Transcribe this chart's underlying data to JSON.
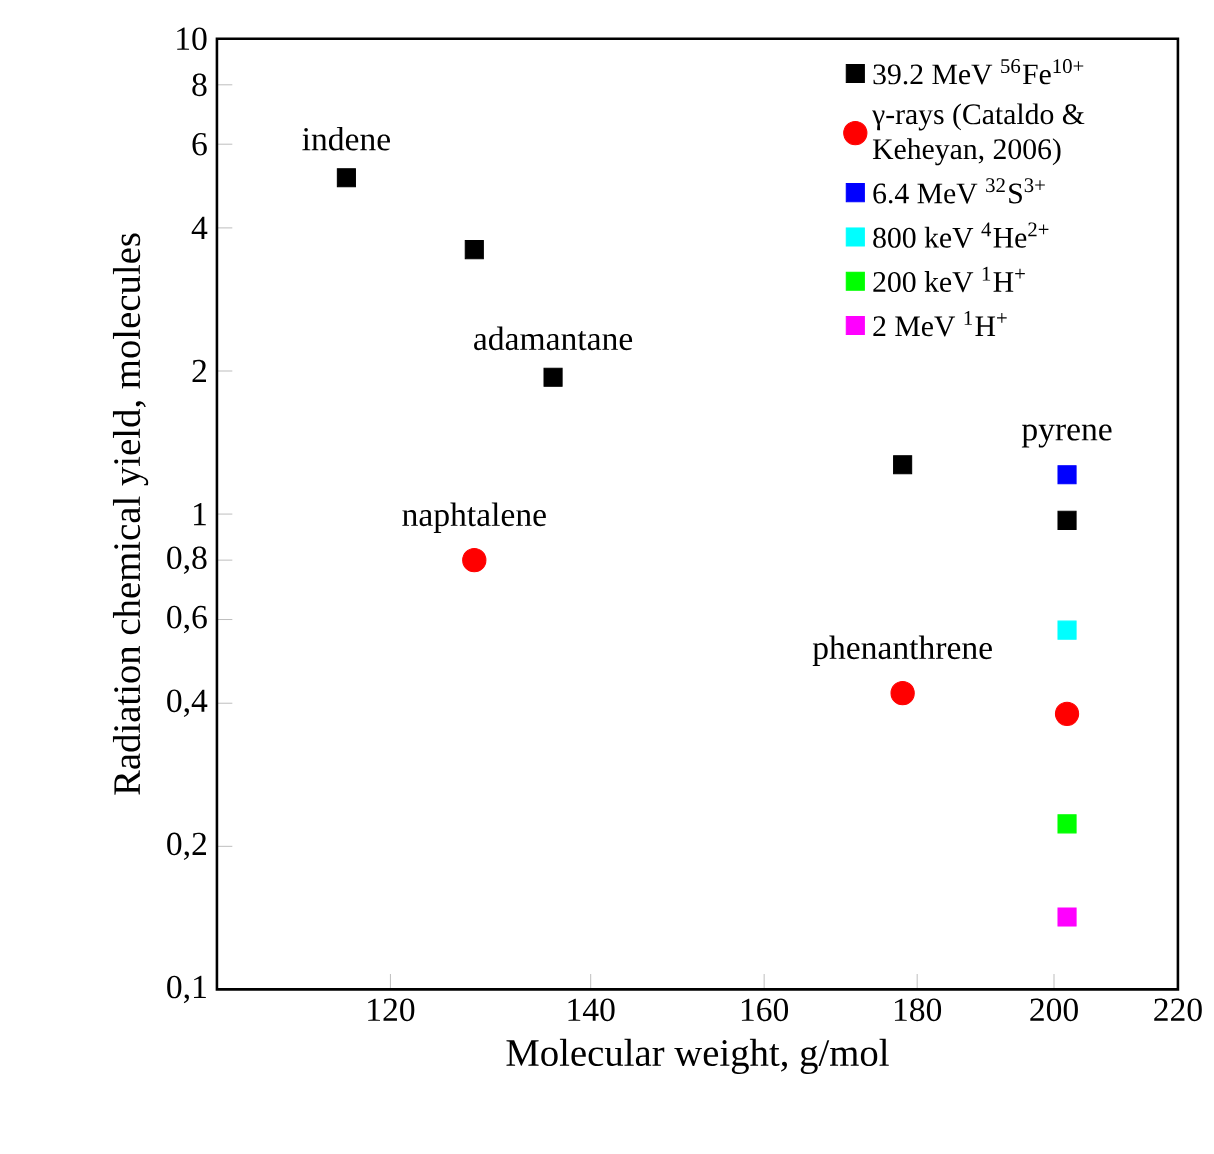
{
  "chart_data": {
    "type": "scatter",
    "xlabel": "Molecular weight, g/mol",
    "ylabel": "Radiation chemical yield, molecules",
    "log": "xy",
    "xlim": [
      105,
      220
    ],
    "ylim": [
      0.1,
      10
    ],
    "xticks": [
      120,
      140,
      160,
      180,
      200,
      220
    ],
    "yticks": [
      {
        "value": 0.1,
        "label": "0,1"
      },
      {
        "value": 0.2,
        "label": "0,2"
      },
      {
        "value": 0.4,
        "label": "0,4"
      },
      {
        "value": 0.6,
        "label": "0,6"
      },
      {
        "value": 0.8,
        "label": "0,8"
      },
      {
        "value": 1,
        "label": "1"
      },
      {
        "value": 2,
        "label": "2"
      },
      {
        "value": 4,
        "label": "4"
      },
      {
        "value": 6,
        "label": "6"
      },
      {
        "value": 8,
        "label": "8"
      },
      {
        "value": 10,
        "label": "10"
      }
    ],
    "legend": "top right",
    "grid": false,
    "series": [
      {
        "name": "39.2 MeV $^{56}$Fe$^{10+}$",
        "color": "#000000",
        "marker": "square",
        "x": [
          116,
          128,
          136,
          178,
          202
        ],
        "values": [
          5.1,
          3.6,
          1.94,
          1.27,
          0.97
        ]
      },
      {
        "name": "γ-rays (Cataldo & Keheyan, 2006)",
        "color": "#ff0000",
        "marker": "circle",
        "x": [
          128,
          178,
          202
        ],
        "values": [
          0.8,
          0.42,
          0.38
        ]
      },
      {
        "name": "6.4 MeV $^{32}$S$^{3+}$",
        "color": "#0000ff",
        "marker": "square",
        "x": [
          202
        ],
        "values": [
          1.21
        ]
      },
      {
        "name": "800 keV $^{4}$He$^{2+}$",
        "color": "#00ffff",
        "marker": "square",
        "x": [
          202
        ],
        "values": [
          0.57
        ]
      },
      {
        "name": "200 keV $^{1}$H$^{+}$",
        "color": "#00ff00",
        "marker": "square",
        "x": [
          202
        ],
        "values": [
          0.223
        ]
      },
      {
        "name": "2 MeV $^{1}$H$^{+}$",
        "color": "#ff00ff",
        "marker": "square",
        "x": [
          202
        ],
        "values": [
          0.142
        ]
      }
    ],
    "annotations": [
      {
        "text": "indene",
        "x": 116,
        "y": 5.1
      },
      {
        "text": "naphtalene",
        "x": 128,
        "y": 0.8
      },
      {
        "text": "adamantane",
        "x": 136,
        "y": 1.94
      },
      {
        "text": "phenanthrene",
        "x": 178,
        "y": 0.42
      },
      {
        "text": "pyrene",
        "x": 202,
        "y": 1.21
      }
    ]
  }
}
